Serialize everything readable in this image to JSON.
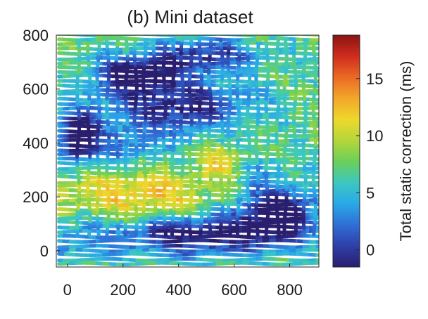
{
  "chart_data": {
    "type": "heatmap",
    "title": "(b) Mini dataset",
    "xlabel": "",
    "ylabel": "",
    "xlim": [
      -40,
      905
    ],
    "ylim": [
      -60,
      800
    ],
    "x_ticks": [
      0,
      200,
      400,
      600,
      800
    ],
    "y_ticks": [
      0,
      200,
      400,
      600,
      800
    ],
    "colorbar": {
      "label": "Total static correction (ms)",
      "range": [
        -1.5,
        18.8
      ],
      "ticks": [
        0,
        5,
        10,
        15
      ],
      "colormap": [
        "#2a1e6e",
        "#2e3fa8",
        "#2f6fd6",
        "#2aa8e8",
        "#3cc8c0",
        "#6ccf5a",
        "#b4d63a",
        "#eed82c",
        "#f2a62a",
        "#ea6a24",
        "#cf2c1e",
        "#8a1512"
      ]
    },
    "grid_lines": {
      "row_spacing": 17,
      "column_spacing": 34,
      "column_range_y": [
        60,
        780
      ]
    },
    "anomalies": [
      {
        "x": 70,
        "y": 850,
        "value": 7,
        "sx": 600,
        "sy": 90
      },
      {
        "x": 250,
        "y": 660,
        "value": -2,
        "sx": 150,
        "sy": 65
      },
      {
        "x": 500,
        "y": 730,
        "value": 0,
        "sx": 190,
        "sy": 60
      },
      {
        "x": 250,
        "y": 205,
        "value": 12,
        "sx": 310,
        "sy": 95
      },
      {
        "x": 220,
        "y": 390,
        "value": 3,
        "sx": 130,
        "sy": 60
      },
      {
        "x": 560,
        "y": 330,
        "value": 12,
        "sx": 80,
        "sy": 70
      },
      {
        "x": 660,
        "y": 300,
        "value": 5,
        "sx": 110,
        "sy": 70
      },
      {
        "x": 760,
        "y": 140,
        "value": -3,
        "sx": 150,
        "sy": 110
      },
      {
        "x": 460,
        "y": 60,
        "value": -2,
        "sx": 280,
        "sy": 80
      },
      {
        "x": 40,
        "y": 40,
        "value": 4,
        "sx": 160,
        "sy": 85
      },
      {
        "x": 40,
        "y": 420,
        "value": -3,
        "sx": 80,
        "sy": 100
      },
      {
        "x": 400,
        "y": 540,
        "value": -1,
        "sx": 260,
        "sy": 110
      }
    ],
    "base_value": 7,
    "surface_note": "values estimated from colours; grid of crossing survey lines coloured by static correction"
  }
}
